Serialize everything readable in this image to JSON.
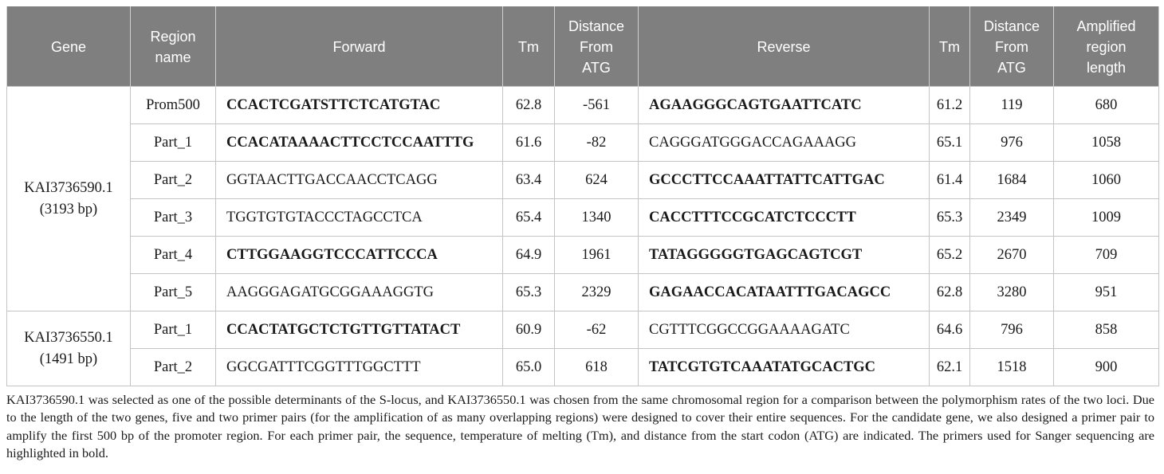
{
  "table": {
    "headers": {
      "gene": "Gene",
      "region_name": [
        "Region",
        "name"
      ],
      "forward": "Forward",
      "tm1": "Tm",
      "distance1": [
        "Distance",
        "From",
        "ATG"
      ],
      "reverse": "Reverse",
      "tm2": "Tm",
      "distance2": [
        "Distance",
        "From",
        "ATG"
      ],
      "amplified": [
        "Amplified",
        "region",
        "length"
      ]
    },
    "genes": [
      {
        "name": "KAI3736590.1",
        "length": "(3193 bp)",
        "rows": [
          {
            "region": "Prom500",
            "forward": "CCACTCGATSTTCTCATGTAC",
            "forward_bold": true,
            "tm_f": "62.8",
            "dist_f": "-561",
            "reverse": "AGAAGGGCAGTGAATTCATC",
            "reverse_bold": true,
            "tm_r": "61.2",
            "dist_r": "119",
            "length": "680"
          },
          {
            "region": "Part_1",
            "forward": "CCACATAAAACTTCCTCCAATTTG",
            "forward_bold": true,
            "tm_f": "61.6",
            "dist_f": "-82",
            "reverse": "CAGGGATGGGACCAGAAAGG",
            "reverse_bold": false,
            "tm_r": "65.1",
            "dist_r": "976",
            "length": "1058"
          },
          {
            "region": "Part_2",
            "forward": "GGTAACTTGACCAACCTCAGG",
            "forward_bold": false,
            "tm_f": "63.4",
            "dist_f": "624",
            "reverse": "GCCCTTCCAAATTATTCATTGAC",
            "reverse_bold": true,
            "tm_r": "61.4",
            "dist_r": "1684",
            "length": "1060"
          },
          {
            "region": "Part_3",
            "forward": "TGGTGTGTACCCTAGCCTCA",
            "forward_bold": false,
            "tm_f": "65.4",
            "dist_f": "1340",
            "reverse": "CACCTTTCCGCATCTCCCTT",
            "reverse_bold": true,
            "tm_r": "65.3",
            "dist_r": "2349",
            "length": "1009"
          },
          {
            "region": "Part_4",
            "forward": "CTTGGAAGGTCCCATTCCCA",
            "forward_bold": true,
            "tm_f": "64.9",
            "dist_f": "1961",
            "reverse": "TATAGGGGGTGAGCAGTCGT",
            "reverse_bold": true,
            "tm_r": "65.2",
            "dist_r": "2670",
            "length": "709"
          },
          {
            "region": "Part_5",
            "forward": "AAGGGAGATGCGGAAAGGTG",
            "forward_bold": false,
            "tm_f": "65.3",
            "dist_f": "2329",
            "reverse": "GAGAACCACATAATTTGACAGCC",
            "reverse_bold": true,
            "tm_r": "62.8",
            "dist_r": "3280",
            "length": "951"
          }
        ]
      },
      {
        "name": "KAI3736550.1",
        "length": "(1491 bp)",
        "rows": [
          {
            "region": "Part_1",
            "forward": "CCACTATGCTCTGTTGTTATACT",
            "forward_bold": true,
            "tm_f": "60.9",
            "dist_f": "-62",
            "reverse": "CGTTTCGGCCGGAAAAGATC",
            "reverse_bold": false,
            "tm_r": "64.6",
            "dist_r": "796",
            "length": "858"
          },
          {
            "region": "Part_2",
            "forward": "GGCGATTTCGGTTTGGCTTT",
            "forward_bold": false,
            "tm_f": "65.0",
            "dist_f": "618",
            "reverse": "TATCGTGTCAAATATGCACTGC",
            "reverse_bold": true,
            "tm_r": "62.1",
            "dist_r": "1518",
            "length": "900"
          }
        ]
      }
    ]
  },
  "footnote": "KAI3736590.1 was selected as one of the possible determinants of the S-locus, and KAI3736550.1 was chosen from the same chromosomal region for a comparison between the polymorphism rates of the two loci. Due to the length of the two genes, five and two primer pairs (for the amplification of as many overlapping regions) were designed to cover their entire sequences. For the candidate gene, we also designed a primer pair to amplify the first 500 bp of the promoter region. For each primer pair, the sequence, temperature of melting (Tm), and distance from the start codon (ATG) are indicated. The primers used for Sanger sequencing are highlighted in bold."
}
